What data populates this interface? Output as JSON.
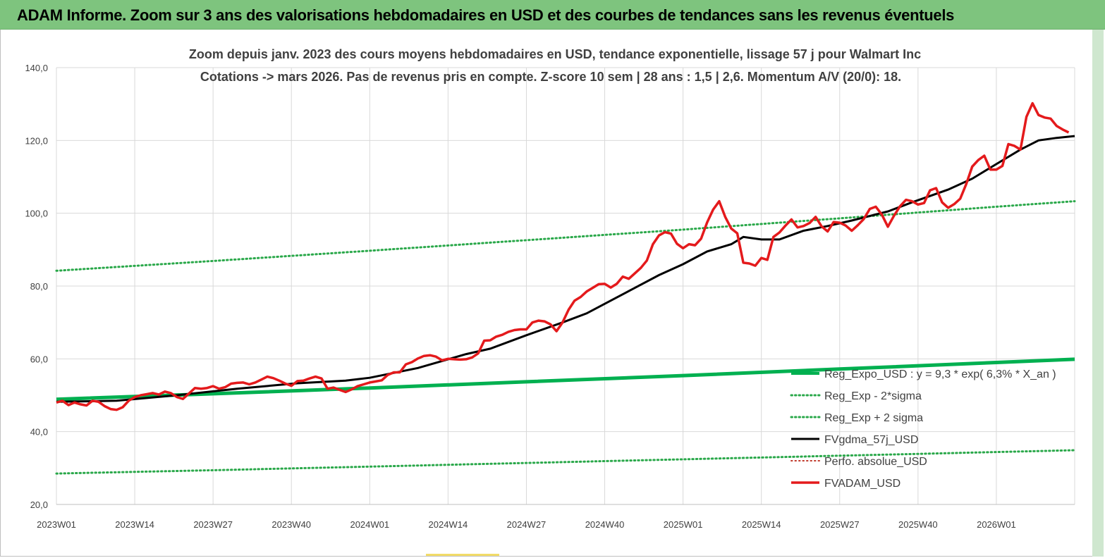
{
  "header": {
    "title": "ADAM Informe. Zoom sur 3 ans des valorisations hebdomadaires en USD et des courbes de tendances sans les revenus éventuels"
  },
  "colors": {
    "header_bg": "#7ec47e",
    "regression": "#00b050",
    "sigma_bands": "#2aa84a",
    "moving_average": "#000000",
    "price": "#e41a1c",
    "perf_absolue": "#c0392b"
  },
  "chart_data": {
    "type": "line",
    "title_lines": [
      "Zoom depuis janv. 2023 des cours moyens hebdomadaires en USD, tendance exponentielle, lissage 57 j pour Walmart Inc",
      "Cotations -> mars 2026. Pas de revenus pris en compte. Z-score 10 sem | 28 ans : 1,5 | 2,6. Momentum A/V (20/0): 18."
    ],
    "ylim": [
      20,
      140
    ],
    "y_ticks": [
      "20,0",
      "40,0",
      "60,0",
      "80,0",
      "100,0",
      "120,0",
      "140,0"
    ],
    "x_range_weeks": [
      0,
      169
    ],
    "x_ticks": [
      {
        "label": "2023W01",
        "week": 0
      },
      {
        "label": "2023W14",
        "week": 13
      },
      {
        "label": "2023W27",
        "week": 26
      },
      {
        "label": "2023W40",
        "week": 39
      },
      {
        "label": "2024W01",
        "week": 52
      },
      {
        "label": "2024W14",
        "week": 65
      },
      {
        "label": "2024W27",
        "week": 78
      },
      {
        "label": "2024W40",
        "week": 91
      },
      {
        "label": "2025W01",
        "week": 104
      },
      {
        "label": "2025W14",
        "week": 117
      },
      {
        "label": "2025W27",
        "week": 130
      },
      {
        "label": "2025W40",
        "week": 143
      },
      {
        "label": "2026W01",
        "week": 156
      }
    ],
    "grid": "horizontal and vertical",
    "legend_position": "bottom-right",
    "series": [
      {
        "name": "Reg_Expo_USD : y = 9,3 * exp( 6,3% * X_an )",
        "style": "thick-solid",
        "points": [
          [
            0,
            48.9
          ],
          [
            26,
            50.4
          ],
          [
            52,
            52.0
          ],
          [
            78,
            53.7
          ],
          [
            104,
            55.4
          ],
          [
            130,
            57.2
          ],
          [
            156,
            59.0
          ],
          [
            169,
            59.9
          ]
        ]
      },
      {
        "name": "Reg_Exp - 2*sigma",
        "style": "dotted",
        "points": [
          [
            0,
            28.5
          ],
          [
            26,
            29.4
          ],
          [
            52,
            30.4
          ],
          [
            78,
            31.4
          ],
          [
            104,
            32.4
          ],
          [
            130,
            33.4
          ],
          [
            156,
            34.4
          ],
          [
            169,
            34.9
          ]
        ]
      },
      {
        "name": "Reg_Exp + 2 sigma",
        "style": "dotted",
        "points": [
          [
            0,
            84.2
          ],
          [
            26,
            86.9
          ],
          [
            52,
            89.7
          ],
          [
            78,
            92.6
          ],
          [
            104,
            95.5
          ],
          [
            130,
            98.6
          ],
          [
            156,
            101.8
          ],
          [
            169,
            103.3
          ]
        ]
      },
      {
        "name": "FVgdma_57j_USD",
        "style": "solid",
        "points": [
          [
            0,
            48.2
          ],
          [
            10,
            48.5
          ],
          [
            20,
            50.0
          ],
          [
            30,
            51.8
          ],
          [
            40,
            53.3
          ],
          [
            48,
            54.0
          ],
          [
            52,
            54.8
          ],
          [
            60,
            57.5
          ],
          [
            68,
            61.3
          ],
          [
            72,
            62.8
          ],
          [
            78,
            66.5
          ],
          [
            84,
            70.0
          ],
          [
            88,
            72.5
          ],
          [
            92,
            76.0
          ],
          [
            96,
            79.5
          ],
          [
            100,
            83.0
          ],
          [
            104,
            86.0
          ],
          [
            108,
            89.5
          ],
          [
            112,
            91.5
          ],
          [
            114,
            93.5
          ],
          [
            117,
            92.8
          ],
          [
            120,
            92.8
          ],
          [
            124,
            95.2
          ],
          [
            128,
            96.5
          ],
          [
            132,
            98.0
          ],
          [
            138,
            100.5
          ],
          [
            142,
            103.0
          ],
          [
            148,
            106.5
          ],
          [
            152,
            109.5
          ],
          [
            156,
            113.5
          ],
          [
            160,
            117.5
          ],
          [
            163,
            120.0
          ],
          [
            166,
            120.7
          ],
          [
            169,
            121.2
          ]
        ]
      },
      {
        "name": "Perfo. absolue_USD",
        "style": "dotted",
        "points": []
      },
      {
        "name": "FVADAM_USD",
        "style": "thick-solid",
        "points": [
          [
            0,
            48.0
          ],
          [
            1,
            48.5
          ],
          [
            2,
            47.3
          ],
          [
            3,
            48.0
          ],
          [
            4,
            47.5
          ],
          [
            5,
            47.2
          ],
          [
            6,
            48.5
          ],
          [
            7,
            48.2
          ],
          [
            8,
            47.0
          ],
          [
            9,
            46.2
          ],
          [
            10,
            46.0
          ],
          [
            11,
            46.7
          ],
          [
            12,
            48.5
          ],
          [
            13,
            49.5
          ],
          [
            14,
            50.0
          ],
          [
            15,
            50.3
          ],
          [
            16,
            50.6
          ],
          [
            17,
            50.2
          ],
          [
            18,
            51.0
          ],
          [
            19,
            50.6
          ],
          [
            20,
            49.5
          ],
          [
            21,
            49.0
          ],
          [
            22,
            50.5
          ],
          [
            23,
            52.0
          ],
          [
            24,
            51.8
          ],
          [
            25,
            52.0
          ],
          [
            26,
            52.5
          ],
          [
            27,
            51.8
          ],
          [
            28,
            52.2
          ],
          [
            29,
            53.2
          ],
          [
            30,
            53.4
          ],
          [
            31,
            53.5
          ],
          [
            32,
            53.0
          ],
          [
            33,
            53.5
          ],
          [
            34,
            54.3
          ],
          [
            35,
            55.1
          ],
          [
            36,
            54.7
          ],
          [
            37,
            54.0
          ],
          [
            38,
            53.2
          ],
          [
            39,
            52.6
          ],
          [
            40,
            53.9
          ],
          [
            41,
            54.0
          ],
          [
            42,
            54.6
          ],
          [
            43,
            55.1
          ],
          [
            44,
            54.6
          ],
          [
            45,
            51.8
          ],
          [
            46,
            52.1
          ],
          [
            47,
            51.5
          ],
          [
            48,
            50.9
          ],
          [
            49,
            51.6
          ],
          [
            50,
            52.5
          ],
          [
            51,
            53.0
          ],
          [
            52,
            53.5
          ],
          [
            53,
            53.8
          ],
          [
            54,
            54.1
          ],
          [
            55,
            55.6
          ],
          [
            56,
            56.3
          ],
          [
            57,
            56.3
          ],
          [
            58,
            58.5
          ],
          [
            59,
            59.1
          ],
          [
            60,
            60.1
          ],
          [
            61,
            60.8
          ],
          [
            62,
            61.0
          ],
          [
            63,
            60.6
          ],
          [
            64,
            59.6
          ],
          [
            65,
            60.0
          ],
          [
            66,
            59.9
          ],
          [
            67,
            59.8
          ],
          [
            68,
            59.9
          ],
          [
            69,
            60.4
          ],
          [
            70,
            61.5
          ],
          [
            71,
            65.0
          ],
          [
            72,
            65.1
          ],
          [
            73,
            66.1
          ],
          [
            74,
            66.6
          ],
          [
            75,
            67.4
          ],
          [
            76,
            67.9
          ],
          [
            77,
            68.1
          ],
          [
            78,
            68.1
          ],
          [
            79,
            70.0
          ],
          [
            80,
            70.5
          ],
          [
            81,
            70.3
          ],
          [
            82,
            69.5
          ],
          [
            83,
            67.6
          ],
          [
            84,
            70.0
          ],
          [
            85,
            73.5
          ],
          [
            86,
            76.0
          ],
          [
            87,
            77.0
          ],
          [
            88,
            78.5
          ],
          [
            89,
            79.5
          ],
          [
            90,
            80.5
          ],
          [
            91,
            80.6
          ],
          [
            92,
            79.6
          ],
          [
            93,
            80.6
          ],
          [
            94,
            82.6
          ],
          [
            95,
            82.0
          ],
          [
            96,
            83.5
          ],
          [
            97,
            85.0
          ],
          [
            98,
            87.0
          ],
          [
            99,
            91.5
          ],
          [
            100,
            93.9
          ],
          [
            101,
            94.8
          ],
          [
            102,
            94.4
          ],
          [
            103,
            91.6
          ],
          [
            104,
            90.4
          ],
          [
            105,
            91.5
          ],
          [
            106,
            91.2
          ],
          [
            107,
            93.0
          ],
          [
            108,
            97.5
          ],
          [
            109,
            101.0
          ],
          [
            110,
            103.3
          ],
          [
            111,
            99.0
          ],
          [
            112,
            95.8
          ],
          [
            113,
            94.5
          ],
          [
            114,
            86.4
          ],
          [
            115,
            86.2
          ],
          [
            116,
            85.6
          ],
          [
            117,
            87.7
          ],
          [
            118,
            87.2
          ],
          [
            119,
            93.5
          ],
          [
            120,
            94.7
          ],
          [
            121,
            96.6
          ],
          [
            122,
            98.3
          ],
          [
            123,
            96.1
          ],
          [
            124,
            96.5
          ],
          [
            125,
            97.3
          ],
          [
            126,
            99.0
          ],
          [
            127,
            96.4
          ],
          [
            128,
            95.0
          ],
          [
            129,
            97.6
          ],
          [
            130,
            97.4
          ],
          [
            131,
            96.6
          ],
          [
            132,
            95.2
          ],
          [
            133,
            96.7
          ],
          [
            134,
            98.4
          ],
          [
            135,
            101.2
          ],
          [
            136,
            101.8
          ],
          [
            137,
            99.6
          ],
          [
            138,
            96.3
          ],
          [
            139,
            99.3
          ],
          [
            140,
            101.9
          ],
          [
            141,
            103.7
          ],
          [
            142,
            103.3
          ],
          [
            143,
            102.4
          ],
          [
            144,
            102.8
          ],
          [
            145,
            106.3
          ],
          [
            146,
            106.9
          ],
          [
            147,
            103.0
          ],
          [
            148,
            101.5
          ],
          [
            149,
            102.5
          ],
          [
            150,
            104.0
          ],
          [
            151,
            108.0
          ],
          [
            152,
            112.8
          ],
          [
            153,
            114.6
          ],
          [
            154,
            115.8
          ],
          [
            155,
            112.0
          ],
          [
            156,
            112.0
          ],
          [
            157,
            113.0
          ],
          [
            158,
            119.0
          ],
          [
            159,
            118.5
          ],
          [
            160,
            117.5
          ],
          [
            161,
            126.5
          ],
          [
            162,
            130.2
          ],
          [
            163,
            127.0
          ],
          [
            164,
            126.3
          ],
          [
            165,
            126.0
          ],
          [
            166,
            124.0
          ],
          [
            167,
            123.0
          ],
          [
            168,
            122.2
          ]
        ]
      }
    ]
  }
}
